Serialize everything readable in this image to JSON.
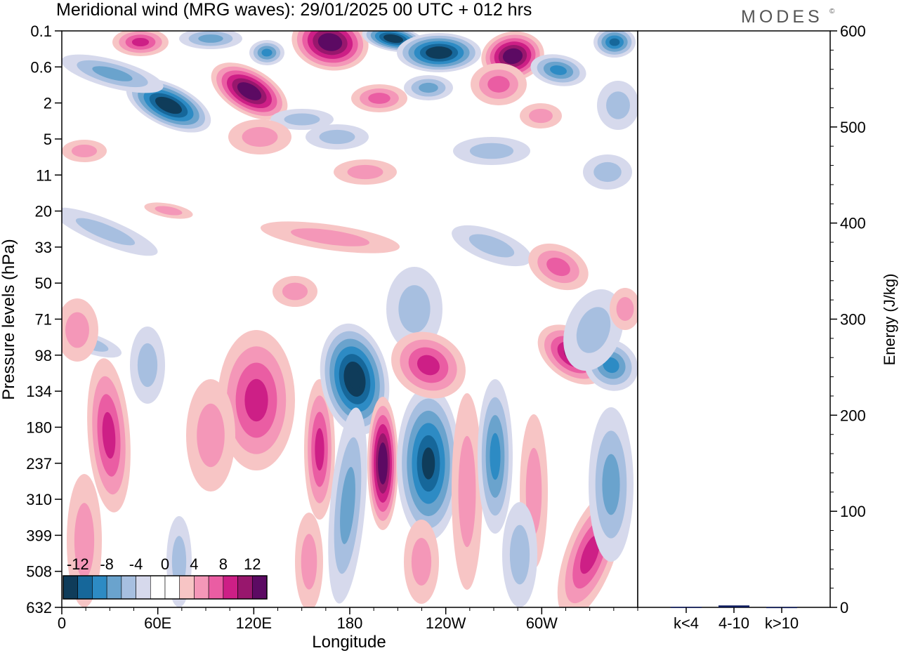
{
  "header": {
    "title": "Meridional wind (MRG waves):  29/01/2025  00 UTC  + 012 hrs",
    "logo_text": "MODES",
    "logo_mark": "©"
  },
  "chart_data": [
    {
      "type": "heatmap",
      "title": "Meridional wind (MRG waves):  29/01/2025  00 UTC  + 012 hrs",
      "xlabel": "Longitude",
      "ylabel": "Pressure levels (hPa)",
      "x_tick_labels": [
        "0",
        "60E",
        "120E",
        "180",
        "120W",
        "60W"
      ],
      "x_tick_degrees": [
        0,
        60,
        120,
        180,
        240,
        300
      ],
      "xlim_degrees": [
        0,
        360
      ],
      "y_tick_labels": [
        "0.1",
        "0.6",
        "2",
        "5",
        "11",
        "20",
        "33",
        "50",
        "71",
        "98",
        "134",
        "180",
        "237",
        "310",
        "399",
        "508",
        "632"
      ],
      "y_axis_direction": "pressure increasing downward",
      "colorbar": {
        "tick_labels": [
          "-12",
          "-8",
          "-4",
          "0",
          "4",
          "8",
          "12"
        ],
        "levels": [
          -14,
          -12,
          -10,
          -8,
          -6,
          -4,
          -2,
          0,
          2,
          4,
          6,
          8,
          10,
          12,
          14
        ],
        "colors": [
          "#0f3c5a",
          "#16679a",
          "#2d8bc4",
          "#6aa3cd",
          "#a7bfe0",
          "#d6d9ec",
          "#ffffff",
          "#ffffff",
          "#f7c5c5",
          "#f497b8",
          "#ea5da3",
          "#cd1f86",
          "#98176d",
          "#5c0a63"
        ]
      },
      "features": [
        {
          "lon": 195,
          "level": "237",
          "sign": "positive",
          "peak": 14
        },
        {
          "lon": 185,
          "level": "134",
          "sign": "negative",
          "peak": -14
        },
        {
          "lon": 217,
          "level": "237",
          "sign": "negative",
          "peak": -12
        },
        {
          "lon": 235,
          "level": "134",
          "sign": "positive",
          "peak": 8
        },
        {
          "lon": 125,
          "level": "134",
          "sign": "positive",
          "peak": 8
        },
        {
          "lon": 30,
          "level": "237",
          "sign": "positive",
          "peak": 8
        },
        {
          "lon": 325,
          "level": "98",
          "sign": "positive",
          "peak": 10
        },
        {
          "lon": 350,
          "level": "134",
          "sign": "negative",
          "peak": -8
        },
        {
          "lon": 165,
          "level": "0.6",
          "sign": "positive",
          "peak": 14
        },
        {
          "lon": 112,
          "level": "2",
          "sign": "positive",
          "peak": 14
        },
        {
          "lon": 75,
          "level": "2",
          "sign": "negative",
          "peak": -14
        },
        {
          "lon": 230,
          "level": "0.6",
          "sign": "negative",
          "peak": -14
        },
        {
          "lon": 290,
          "level": "0.1",
          "sign": "positive",
          "peak": 14
        }
      ]
    },
    {
      "type": "bar",
      "ylabel": "Energy (J/kg)",
      "ylim": [
        0,
        600
      ],
      "y_tick_labels": [
        "0",
        "100",
        "200",
        "300",
        "400",
        "500",
        "600"
      ],
      "categories": [
        "k<4",
        "4-10",
        "k>10"
      ],
      "values": [
        0.5,
        2,
        0.3
      ],
      "color": "#0d1a5c"
    }
  ]
}
